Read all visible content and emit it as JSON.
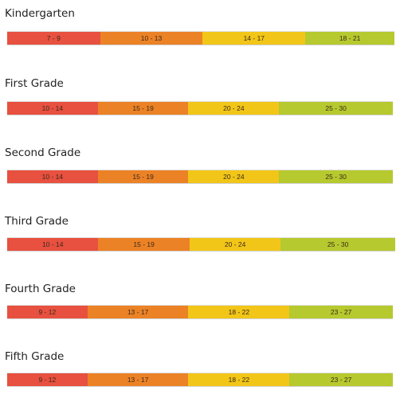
{
  "colors": {
    "red": "#e8503f",
    "orange": "#ec8226",
    "yellow": "#f2c618",
    "green": "#b6c92e"
  },
  "chart_data": {
    "type": "bar",
    "orientation": "horizontal",
    "stacked": true,
    "grades": [
      {
        "name": "Kindergarten",
        "ranges": [
          {
            "label": "7 - 9",
            "color": "red",
            "share": 0.24
          },
          {
            "label": "10 - 13",
            "color": "orange",
            "share": 0.265
          },
          {
            "label": "14 - 17",
            "color": "yellow",
            "share": 0.265
          },
          {
            "label": "18 - 21",
            "color": "green",
            "share": 0.23
          }
        ]
      },
      {
        "name": "First Grade",
        "ranges": [
          {
            "label": "10 - 14",
            "color": "red",
            "share": 0.235
          },
          {
            "label": "15 - 19",
            "color": "orange",
            "share": 0.235
          },
          {
            "label": "20 - 24",
            "color": "yellow",
            "share": 0.235
          },
          {
            "label": "25 - 30",
            "color": "green",
            "share": 0.295
          }
        ]
      },
      {
        "name": "Second Grade",
        "ranges": [
          {
            "label": "10 - 14",
            "color": "red",
            "share": 0.235
          },
          {
            "label": "15 - 19",
            "color": "orange",
            "share": 0.235
          },
          {
            "label": "20 - 24",
            "color": "yellow",
            "share": 0.235
          },
          {
            "label": "25 - 30",
            "color": "green",
            "share": 0.295
          }
        ]
      },
      {
        "name": "Third Grade",
        "ranges": [
          {
            "label": "10 - 14",
            "color": "red",
            "share": 0.235
          },
          {
            "label": "15 - 19",
            "color": "orange",
            "share": 0.235
          },
          {
            "label": "20 - 24",
            "color": "yellow",
            "share": 0.235
          },
          {
            "label": "25 - 30",
            "color": "green",
            "share": 0.295
          }
        ]
      },
      {
        "name": "Fourth Grade",
        "ranges": [
          {
            "label": "9 - 12",
            "color": "red",
            "share": 0.208
          },
          {
            "label": "13 - 17",
            "color": "orange",
            "share": 0.262
          },
          {
            "label": "18 - 22",
            "color": "yellow",
            "share": 0.262
          },
          {
            "label": "23 - 27",
            "color": "green",
            "share": 0.268
          }
        ]
      },
      {
        "name": "Fifth Grade",
        "ranges": [
          {
            "label": "9 - 12",
            "color": "red",
            "share": 0.208
          },
          {
            "label": "13 - 17",
            "color": "orange",
            "share": 0.262
          },
          {
            "label": "18 - 22",
            "color": "yellow",
            "share": 0.262
          },
          {
            "label": "23 - 27",
            "color": "green",
            "share": 0.268
          }
        ]
      }
    ]
  }
}
